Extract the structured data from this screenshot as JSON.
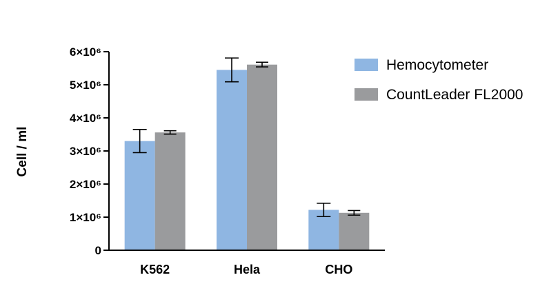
{
  "chart_data": {
    "type": "bar",
    "categories": [
      "K562",
      "Hela",
      "CHO"
    ],
    "series": [
      {
        "name": "Hemocytometer",
        "color": "#8fb6e2",
        "values": [
          3300000,
          5450000,
          1220000
        ],
        "error": [
          350000,
          360000,
          200000
        ]
      },
      {
        "name": "CountLeader FL2000",
        "color": "#9a9b9d",
        "values": [
          3560000,
          5610000,
          1130000
        ],
        "error": [
          50000,
          70000,
          70000
        ]
      }
    ],
    "ylabel": "Cell / ml",
    "xlabel": "",
    "ylim": [
      0,
      6000000
    ],
    "yticks": [
      {
        "value": 0,
        "label": "0"
      },
      {
        "value": 1000000,
        "label": "1×10⁶"
      },
      {
        "value": 2000000,
        "label": "2×10⁶"
      },
      {
        "value": 3000000,
        "label": "3×10⁶"
      },
      {
        "value": 4000000,
        "label": "4×10⁶"
      },
      {
        "value": 5000000,
        "label": "5×10⁶"
      },
      {
        "value": 6000000,
        "label": "6×10⁶"
      }
    ],
    "grid": false,
    "legend": "top-right"
  }
}
